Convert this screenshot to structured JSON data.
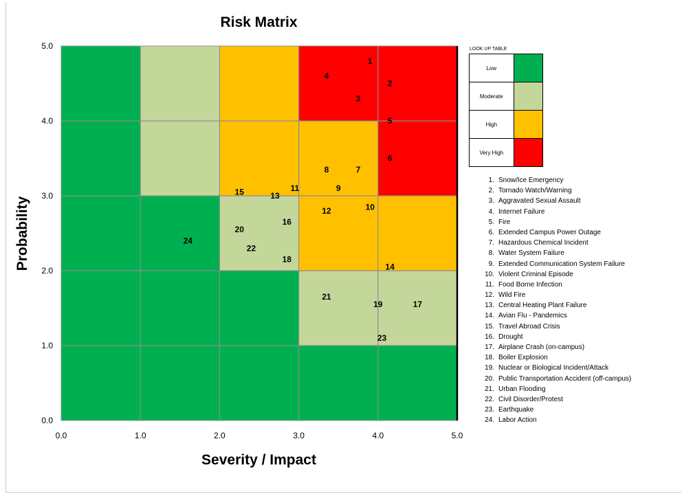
{
  "chart_data": {
    "type": "heatmap",
    "title": "Risk Matrix",
    "xlabel": "Severity / Impact",
    "ylabel": "Probability",
    "xlim": [
      0,
      5
    ],
    "ylim": [
      0,
      5
    ],
    "x_ticks": [
      "0.0",
      "1.0",
      "2.0",
      "3.0",
      "4.0",
      "5.0"
    ],
    "y_ticks": [
      "0.0",
      "1.0",
      "2.0",
      "3.0",
      "4.0",
      "5.0"
    ],
    "grid": true,
    "cells": [
      {
        "x": [
          0,
          1
        ],
        "y": [
          4,
          5
        ],
        "level": "Low"
      },
      {
        "x": [
          1,
          2
        ],
        "y": [
          4,
          5
        ],
        "level": "Moderate"
      },
      {
        "x": [
          2,
          3
        ],
        "y": [
          4,
          5
        ],
        "level": "High"
      },
      {
        "x": [
          3,
          4
        ],
        "y": [
          4,
          5
        ],
        "level": "Very High"
      },
      {
        "x": [
          4,
          5
        ],
        "y": [
          4,
          5
        ],
        "level": "Very High"
      },
      {
        "x": [
          0,
          1
        ],
        "y": [
          3,
          4
        ],
        "level": "Low"
      },
      {
        "x": [
          1,
          2
        ],
        "y": [
          3,
          4
        ],
        "level": "Moderate"
      },
      {
        "x": [
          2,
          3
        ],
        "y": [
          3,
          4
        ],
        "level": "High"
      },
      {
        "x": [
          3,
          4
        ],
        "y": [
          3,
          4
        ],
        "level": "High"
      },
      {
        "x": [
          4,
          5
        ],
        "y": [
          3,
          4
        ],
        "level": "Very High"
      },
      {
        "x": [
          0,
          1
        ],
        "y": [
          2,
          3
        ],
        "level": "Low"
      },
      {
        "x": [
          1,
          2
        ],
        "y": [
          2,
          3
        ],
        "level": "Low"
      },
      {
        "x": [
          2,
          3
        ],
        "y": [
          2,
          3
        ],
        "level": "Moderate"
      },
      {
        "x": [
          3,
          4
        ],
        "y": [
          2,
          3
        ],
        "level": "High"
      },
      {
        "x": [
          4,
          5
        ],
        "y": [
          2,
          3
        ],
        "level": "High"
      },
      {
        "x": [
          0,
          1
        ],
        "y": [
          1,
          2
        ],
        "level": "Low"
      },
      {
        "x": [
          1,
          2
        ],
        "y": [
          1,
          2
        ],
        "level": "Low"
      },
      {
        "x": [
          2,
          3
        ],
        "y": [
          1,
          2
        ],
        "level": "Low"
      },
      {
        "x": [
          3,
          4
        ],
        "y": [
          1,
          2
        ],
        "level": "Moderate"
      },
      {
        "x": [
          4,
          5
        ],
        "y": [
          1,
          2
        ],
        "level": "Moderate"
      },
      {
        "x": [
          0,
          1
        ],
        "y": [
          0,
          1
        ],
        "level": "Low"
      },
      {
        "x": [
          1,
          2
        ],
        "y": [
          0,
          1
        ],
        "level": "Low"
      },
      {
        "x": [
          2,
          3
        ],
        "y": [
          0,
          1
        ],
        "level": "Low"
      },
      {
        "x": [
          3,
          4
        ],
        "y": [
          0,
          1
        ],
        "level": "Low"
      },
      {
        "x": [
          4,
          5
        ],
        "y": [
          0,
          1
        ],
        "level": "Low"
      }
    ],
    "points": [
      {
        "id": "1",
        "x": 3.9,
        "y": 4.8
      },
      {
        "id": "2",
        "x": 4.15,
        "y": 4.5
      },
      {
        "id": "3",
        "x": 3.75,
        "y": 4.3
      },
      {
        "id": "4",
        "x": 3.35,
        "y": 4.6
      },
      {
        "id": "5",
        "x": 4.15,
        "y": 4.0
      },
      {
        "id": "6",
        "x": 4.15,
        "y": 3.5
      },
      {
        "id": "7",
        "x": 3.75,
        "y": 3.35
      },
      {
        "id": "8",
        "x": 3.35,
        "y": 3.35
      },
      {
        "id": "9",
        "x": 3.5,
        "y": 3.1
      },
      {
        "id": "10",
        "x": 3.9,
        "y": 2.85
      },
      {
        "id": "11",
        "x": 2.95,
        "y": 3.1
      },
      {
        "id": "12",
        "x": 3.35,
        "y": 2.8
      },
      {
        "id": "13",
        "x": 2.7,
        "y": 3.0
      },
      {
        "id": "14",
        "x": 4.15,
        "y": 2.05
      },
      {
        "id": "15",
        "x": 2.25,
        "y": 3.05
      },
      {
        "id": "16",
        "x": 2.85,
        "y": 2.65
      },
      {
        "id": "17",
        "x": 4.5,
        "y": 1.55
      },
      {
        "id": "18",
        "x": 2.85,
        "y": 2.15
      },
      {
        "id": "19",
        "x": 4.0,
        "y": 1.55
      },
      {
        "id": "20",
        "x": 2.25,
        "y": 2.55
      },
      {
        "id": "21",
        "x": 3.35,
        "y": 1.65
      },
      {
        "id": "22",
        "x": 2.4,
        "y": 2.3
      },
      {
        "id": "23",
        "x": 4.05,
        "y": 1.1
      },
      {
        "id": "24",
        "x": 1.6,
        "y": 2.4
      }
    ]
  },
  "lookup_table": {
    "title": "LOOK UP TABLE",
    "levels": [
      {
        "label": "Low",
        "color": "#00b050"
      },
      {
        "label": "Moderate",
        "color": "#c4d79b"
      },
      {
        "label": "High",
        "color": "#ffc000"
      },
      {
        "label": "Very High",
        "color": "#ff0000"
      }
    ]
  },
  "risk_list": [
    {
      "num": "1.",
      "text": "Snow/Ice Emergency"
    },
    {
      "num": "2.",
      "text": "Tornado Watch/Warning"
    },
    {
      "num": "3.",
      "text": "Aggravated Sexual Assault"
    },
    {
      "num": "4.",
      "text": "Internet Failure"
    },
    {
      "num": "5.",
      "text": "Fire"
    },
    {
      "num": "6.",
      "text": "Extended Campus Power Outage"
    },
    {
      "num": "7.",
      "text": "Hazardous Chemical Incident"
    },
    {
      "num": "8.",
      "text": "Water System Failure"
    },
    {
      "num": "9.",
      "text": "Extended Communication System Failure"
    },
    {
      "num": "10.",
      "text": "Violent Criminal Episode"
    },
    {
      "num": "11.",
      "text": "Food Borne Infection"
    },
    {
      "num": "12.",
      "text": "Wild Fire"
    },
    {
      "num": "13.",
      "text": "Central Heating Plant Failure"
    },
    {
      "num": "14.",
      "text": "Avian Flu - Pandemics"
    },
    {
      "num": "15.",
      "text": "Travel Abroad Crisis"
    },
    {
      "num": "16.",
      "text": "Drought"
    },
    {
      "num": "17.",
      "text": "Airplane Crash (on-campus)"
    },
    {
      "num": "18.",
      "text": "Boiler Explosion"
    },
    {
      "num": "19.",
      "text": "Nuclear or Biological Incident/Attack"
    },
    {
      "num": "20.",
      "text": "Public Transportation Accident (off-campus)"
    },
    {
      "num": "21.",
      "text": "Urban Flooding"
    },
    {
      "num": "22.",
      "text": "Civil Disorder/Protest"
    },
    {
      "num": "23.",
      "text": "Earthquake"
    },
    {
      "num": "24.",
      "text": "Labor Action"
    }
  ]
}
